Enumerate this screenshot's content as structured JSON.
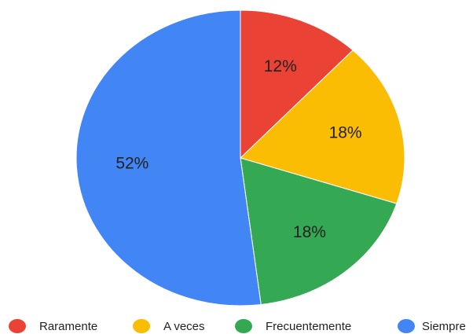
{
  "chart_data": {
    "type": "pie",
    "categories": [
      "Raramente",
      "A veces",
      "Frecuentemente",
      "Siempre"
    ],
    "values": [
      12,
      18,
      18,
      52
    ],
    "value_labels": [
      "12%",
      "18%",
      "18%",
      "52%"
    ],
    "colors": [
      "#ea4335",
      "#fbbc04",
      "#34a853",
      "#4285f4"
    ],
    "legend": "bottom"
  }
}
